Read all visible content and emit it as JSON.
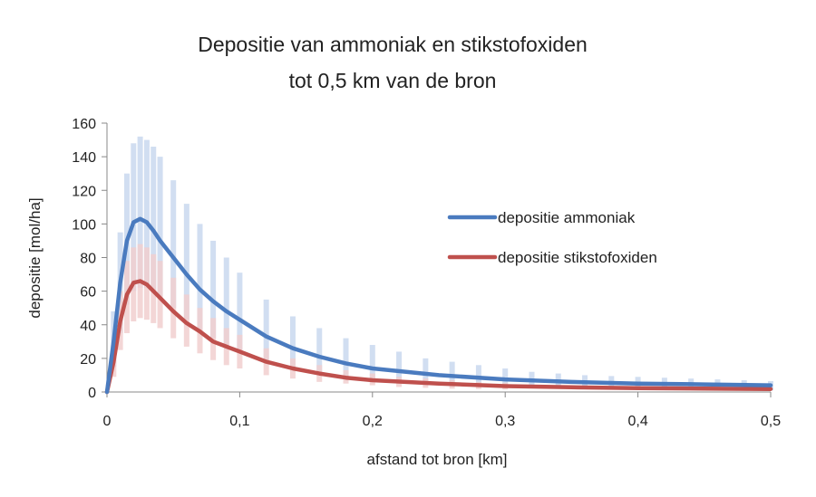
{
  "chart_data": {
    "type": "line",
    "title": [
      "Depositie van ammoniak en stikstofoxiden",
      "tot 0,5 km van de bron"
    ],
    "xlabel": "afstand tot bron [km]",
    "ylabel": "depositie [mol/ha]",
    "xlim": [
      0,
      0.5
    ],
    "ylim": [
      0,
      160
    ],
    "xticks": [
      0,
      0.1,
      0.2,
      0.3,
      0.4,
      0.5
    ],
    "xtick_labels": [
      "0",
      "0,1",
      "0,2",
      "0,3",
      "0,4",
      "0,5"
    ],
    "yticks": [
      0,
      20,
      40,
      60,
      80,
      100,
      120,
      140,
      160
    ],
    "ytick_labels": [
      "0",
      "20",
      "40",
      "60",
      "80",
      "100",
      "120",
      "140",
      "160"
    ],
    "grid": false,
    "legend_position": "right",
    "series": [
      {
        "name": "depositie ammoniak",
        "color": "#4a7bbf",
        "band_color": "#c9d8ee",
        "x": [
          0,
          0.005,
          0.01,
          0.015,
          0.02,
          0.025,
          0.03,
          0.035,
          0.04,
          0.05,
          0.06,
          0.07,
          0.08,
          0.09,
          0.1,
          0.12,
          0.14,
          0.16,
          0.18,
          0.2,
          0.25,
          0.3,
          0.35,
          0.4,
          0.45,
          0.5
        ],
        "values": [
          0,
          30,
          65,
          90,
          101,
          103,
          101,
          96,
          90,
          80,
          70,
          61,
          54,
          48,
          43,
          33,
          26,
          21,
          17,
          14,
          10,
          7.5,
          6,
          5,
          4.5,
          4
        ],
        "range": [
          {
            "x": 0.005,
            "low": 15,
            "high": 48
          },
          {
            "x": 0.01,
            "low": 35,
            "high": 95
          },
          {
            "x": 0.015,
            "low": 52,
            "high": 130
          },
          {
            "x": 0.02,
            "low": 60,
            "high": 148
          },
          {
            "x": 0.025,
            "low": 62,
            "high": 152
          },
          {
            "x": 0.03,
            "low": 62,
            "high": 150
          },
          {
            "x": 0.035,
            "low": 60,
            "high": 146
          },
          {
            "x": 0.04,
            "low": 57,
            "high": 140
          },
          {
            "x": 0.05,
            "low": 50,
            "high": 126
          },
          {
            "x": 0.06,
            "low": 43,
            "high": 112
          },
          {
            "x": 0.07,
            "low": 37,
            "high": 100
          },
          {
            "x": 0.08,
            "low": 32,
            "high": 90
          },
          {
            "x": 0.09,
            "low": 28,
            "high": 80
          },
          {
            "x": 0.1,
            "low": 25,
            "high": 71
          },
          {
            "x": 0.12,
            "low": 19,
            "high": 55
          },
          {
            "x": 0.14,
            "low": 15,
            "high": 45
          },
          {
            "x": 0.16,
            "low": 12,
            "high": 38
          },
          {
            "x": 0.18,
            "low": 9,
            "high": 32
          },
          {
            "x": 0.2,
            "low": 7,
            "high": 28
          },
          {
            "x": 0.22,
            "low": 6,
            "high": 24
          },
          {
            "x": 0.24,
            "low": 5,
            "high": 20
          },
          {
            "x": 0.26,
            "low": 4,
            "high": 18
          },
          {
            "x": 0.28,
            "low": 3,
            "high": 16
          },
          {
            "x": 0.3,
            "low": 3,
            "high": 14
          },
          {
            "x": 0.32,
            "low": 2.5,
            "high": 12
          },
          {
            "x": 0.34,
            "low": 2,
            "high": 11
          },
          {
            "x": 0.36,
            "low": 2,
            "high": 10
          },
          {
            "x": 0.38,
            "low": 2,
            "high": 9.5
          },
          {
            "x": 0.4,
            "low": 1.5,
            "high": 9
          },
          {
            "x": 0.42,
            "low": 1.5,
            "high": 8.5
          },
          {
            "x": 0.44,
            "low": 1.5,
            "high": 8
          },
          {
            "x": 0.46,
            "low": 1.2,
            "high": 7.5
          },
          {
            "x": 0.48,
            "low": 1.2,
            "high": 7
          },
          {
            "x": 0.5,
            "low": 1,
            "high": 6.5
          }
        ]
      },
      {
        "name": "depositie stikstofoxiden",
        "color": "#bf504d",
        "band_color": "#f1cfcf",
        "x": [
          0,
          0.005,
          0.01,
          0.015,
          0.02,
          0.025,
          0.03,
          0.035,
          0.04,
          0.05,
          0.06,
          0.07,
          0.08,
          0.09,
          0.1,
          0.12,
          0.14,
          0.16,
          0.18,
          0.2,
          0.25,
          0.3,
          0.35,
          0.4,
          0.45,
          0.5
        ],
        "values": [
          0,
          18,
          42,
          58,
          65,
          66,
          64,
          60,
          56,
          48,
          41,
          36,
          30,
          27,
          24,
          18,
          14,
          11,
          8.5,
          7,
          5,
          3.5,
          2.8,
          2.3,
          2,
          1.8
        ],
        "range": [
          {
            "x": 0.005,
            "low": 9,
            "high": 28
          },
          {
            "x": 0.01,
            "low": 25,
            "high": 60
          },
          {
            "x": 0.015,
            "low": 35,
            "high": 78
          },
          {
            "x": 0.02,
            "low": 42,
            "high": 86
          },
          {
            "x": 0.025,
            "low": 44,
            "high": 88
          },
          {
            "x": 0.03,
            "low": 43,
            "high": 86
          },
          {
            "x": 0.035,
            "low": 41,
            "high": 82
          },
          {
            "x": 0.04,
            "low": 38,
            "high": 78
          },
          {
            "x": 0.05,
            "low": 32,
            "high": 68
          },
          {
            "x": 0.06,
            "low": 27,
            "high": 58
          },
          {
            "x": 0.07,
            "low": 23,
            "high": 50
          },
          {
            "x": 0.08,
            "low": 19,
            "high": 44
          },
          {
            "x": 0.09,
            "low": 16,
            "high": 38
          },
          {
            "x": 0.1,
            "low": 14,
            "high": 34
          },
          {
            "x": 0.12,
            "low": 10,
            "high": 26
          },
          {
            "x": 0.14,
            "low": 8,
            "high": 20
          },
          {
            "x": 0.16,
            "low": 6,
            "high": 16
          },
          {
            "x": 0.18,
            "low": 5,
            "high": 13
          },
          {
            "x": 0.2,
            "low": 4,
            "high": 11
          },
          {
            "x": 0.22,
            "low": 3,
            "high": 9
          },
          {
            "x": 0.24,
            "low": 2.5,
            "high": 8
          },
          {
            "x": 0.26,
            "low": 2,
            "high": 7
          },
          {
            "x": 0.28,
            "low": 1.8,
            "high": 6
          },
          {
            "x": 0.3,
            "low": 1.5,
            "high": 5.5
          }
        ]
      }
    ]
  }
}
